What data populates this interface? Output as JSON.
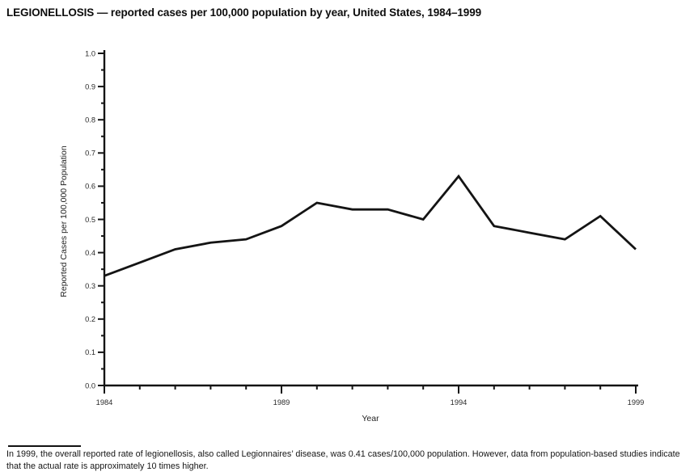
{
  "page": {
    "title": "LEGIONELLOSIS — reported cases per 100,000 population by year, United States, 1984–1999",
    "footnote": "In 1999, the overall reported rate of legionellosis, also called Legionnaires’ disease, was 0.41 cases/100,000 population. However, data from population-based studies indicate that the actual rate is approximately 10 times higher."
  },
  "chart_data": {
    "type": "line",
    "title": "LEGIONELLOSIS — reported cases per 100,000 population by year, United States, 1984–1999",
    "xlabel": "Year",
    "ylabel": "Reported Cases per 100,000 Population",
    "x": [
      1984,
      1985,
      1986,
      1987,
      1988,
      1989,
      1990,
      1991,
      1992,
      1993,
      1994,
      1995,
      1996,
      1997,
      1998,
      1999
    ],
    "values": [
      0.33,
      0.37,
      0.41,
      0.43,
      0.44,
      0.48,
      0.55,
      0.53,
      0.53,
      0.5,
      0.63,
      0.48,
      0.46,
      0.44,
      0.51,
      0.41
    ],
    "xlim": [
      1984,
      1999
    ],
    "ylim": [
      0.0,
      1.0
    ],
    "y_major_step": 0.1,
    "y_minor_step": 0.05,
    "x_major_ticks": [
      1984,
      1989,
      1994,
      1999
    ],
    "x_minor_step": 1,
    "grid": false,
    "legend_position": "none",
    "line_color": "#141414",
    "background_color": "#ffffff"
  }
}
